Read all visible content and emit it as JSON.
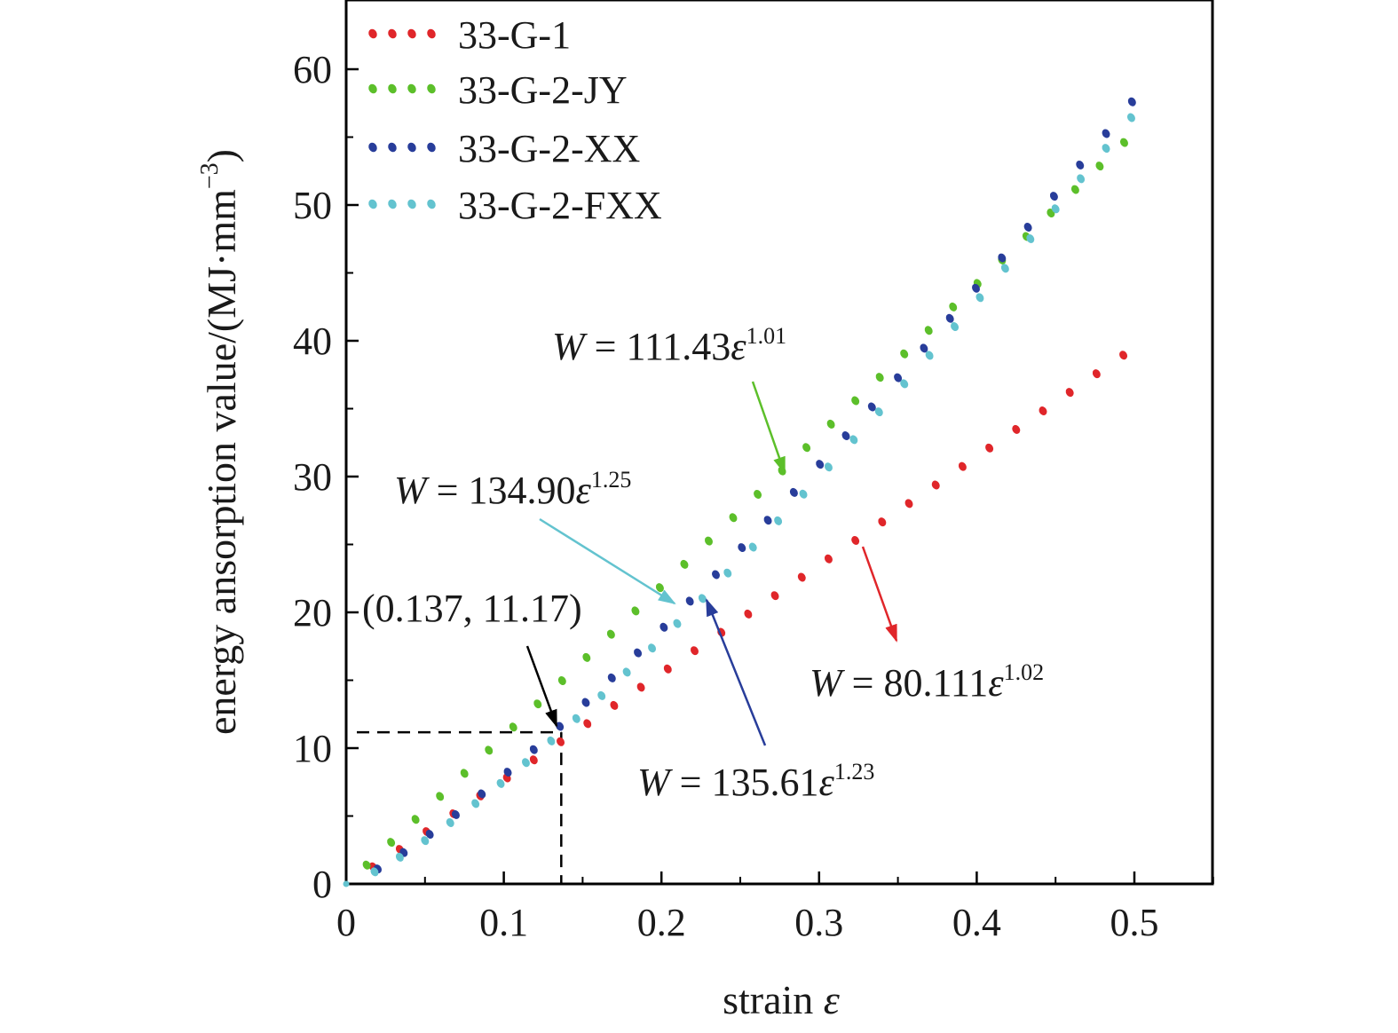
{
  "chart_data": {
    "type": "scatter",
    "xlabel": "strain",
    "xlabel_symbol": "ε",
    "ylabel": "energy ansorption value/(MJ·mm",
    "ylabel_sup": "−3",
    "ylabel_close": ")",
    "xlim": [
      0,
      0.55
    ],
    "ylim": [
      0,
      65
    ],
    "xticks": [
      0,
      0.1,
      0.2,
      0.3,
      0.4,
      0.5
    ],
    "xtick_labels": [
      "0",
      "0.1",
      "0.2",
      "0.3",
      "0.4",
      "0.5"
    ],
    "yticks": [
      0,
      10,
      20,
      30,
      40,
      50,
      60
    ],
    "ytick_labels": [
      "0",
      "10",
      "20",
      "30",
      "40",
      "50",
      "60"
    ],
    "grid": false,
    "legend_position": "top-left",
    "series": [
      {
        "name": "33-G-1",
        "color": "#e0262a",
        "coef": 80.111,
        "exp": 1.02,
        "x_start": 0.017,
        "x_end": 0.5,
        "step": 0.017
      },
      {
        "name": "33-G-2-JY",
        "color": "#5cbf2a",
        "coef": 111.43,
        "exp": 1.01,
        "x_start": 0.013,
        "x_end": 0.5,
        "step": 0.0155
      },
      {
        "name": "33-G-2-XX",
        "color": "#283d9a",
        "coef": 135.61,
        "exp": 1.23,
        "x_start": 0.02,
        "x_end": 0.5,
        "step": 0.0165
      },
      {
        "name": "33-G-2-FXX",
        "color": "#63c3cf",
        "coef": 134.9,
        "exp": 1.25,
        "x_start": 0.018,
        "x_end": 0.5,
        "step": 0.016
      }
    ],
    "reference_point": {
      "x": 0.137,
      "y": 11.17,
      "label": "(0.137, 11.17)"
    },
    "annotations": [
      {
        "id": "jy",
        "prefix": "W",
        "eq": " = 111.43",
        "var": "ε",
        "sup": "1.01",
        "color": "#5cbf2a"
      },
      {
        "id": "fxx",
        "prefix": "W",
        "eq": " = 134.90",
        "var": "ε",
        "sup": "1.25",
        "color": "#63c3cf"
      },
      {
        "id": "g1",
        "prefix": "W",
        "eq": " = 80.111",
        "var": "ε",
        "sup": "1.02",
        "color": "#e0262a"
      },
      {
        "id": "xx",
        "prefix": "W",
        "eq": " = 135.61",
        "var": "ε",
        "sup": "1.23",
        "color": "#283d9a"
      }
    ]
  }
}
